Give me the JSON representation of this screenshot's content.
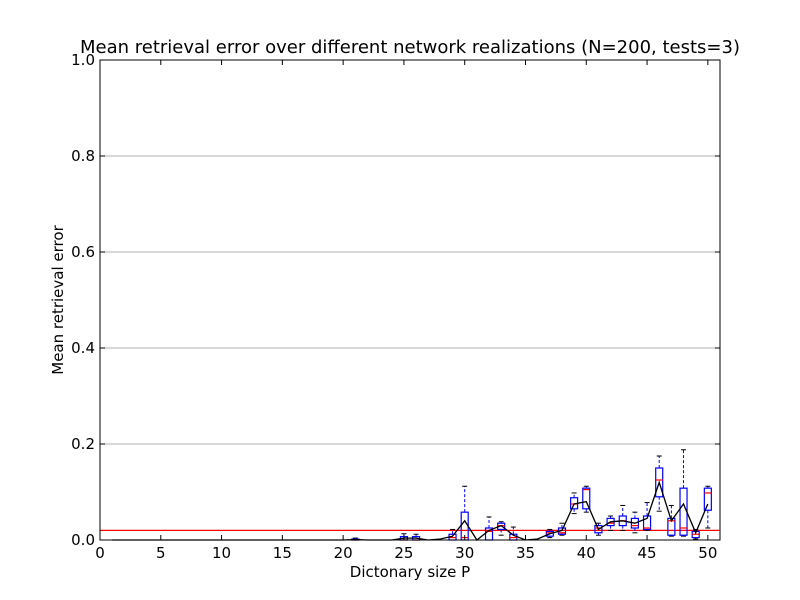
{
  "chart_data": {
    "type": "box",
    "title": "Mean retrieval error over different network realizations (N=200, tests=3)",
    "xlabel": "Dictonary size P",
    "ylabel": "Mean retrieval error",
    "xlim": [
      0,
      51
    ],
    "ylim": [
      0,
      1.0
    ],
    "xticks": [
      "0",
      "5",
      "10",
      "15",
      "20",
      "25",
      "30",
      "35",
      "40",
      "45",
      "50"
    ],
    "yticks": [
      "0.0",
      "0.2",
      "0.4",
      "0.6",
      "0.8",
      "1.0"
    ],
    "grid": "horizontal",
    "reference_line": {
      "y": 0.02,
      "color": "#ff0000"
    },
    "colors": {
      "box": "#0000ff",
      "median": "#ff0000",
      "mean_line": "#000000",
      "grid": "#b0b0b0"
    },
    "boxes": [
      {
        "x": 21,
        "q1": 0,
        "med": 0,
        "q3": 0.002,
        "lo": 0,
        "hi": 0.004,
        "mean": 0.001
      },
      {
        "x": 25,
        "q1": 0,
        "med": 0,
        "q3": 0.007,
        "lo": 0,
        "hi": 0.013,
        "mean": 0.004
      },
      {
        "x": 26,
        "q1": 0,
        "med": 0,
        "q3": 0.007,
        "lo": 0,
        "hi": 0.012,
        "mean": 0.004
      },
      {
        "x": 29,
        "q1": 0,
        "med": 0.005,
        "q3": 0.012,
        "lo": 0,
        "hi": 0.022,
        "mean": 0.008
      },
      {
        "x": 30,
        "q1": 0,
        "med": 0.005,
        "q3": 0.058,
        "lo": 0,
        "hi": 0.112,
        "mean": 0.04
      },
      {
        "x": 32,
        "q1": 0,
        "med": 0.018,
        "q3": 0.025,
        "lo": 0,
        "hi": 0.048,
        "mean": 0.02
      },
      {
        "x": 33,
        "q1": 0.022,
        "med": 0.03,
        "q3": 0.035,
        "lo": 0.01,
        "hi": 0.038,
        "mean": 0.03
      },
      {
        "x": 34,
        "q1": 0,
        "med": 0.005,
        "q3": 0.012,
        "lo": 0,
        "hi": 0.027,
        "mean": 0.01
      },
      {
        "x": 37,
        "q1": 0.008,
        "med": 0.015,
        "q3": 0.018,
        "lo": 0.005,
        "hi": 0.022,
        "mean": 0.013
      },
      {
        "x": 38,
        "q1": 0.012,
        "med": 0.015,
        "q3": 0.025,
        "lo": 0.01,
        "hi": 0.035,
        "mean": 0.02
      },
      {
        "x": 39,
        "q1": 0.065,
        "med": 0.075,
        "q3": 0.088,
        "lo": 0.055,
        "hi": 0.098,
        "mean": 0.075
      },
      {
        "x": 40,
        "q1": 0.065,
        "med": 0.105,
        "q3": 0.108,
        "lo": 0.058,
        "hi": 0.112,
        "mean": 0.08
      },
      {
        "x": 41,
        "q1": 0.015,
        "med": 0.025,
        "q3": 0.03,
        "lo": 0.01,
        "hi": 0.035,
        "mean": 0.022
      },
      {
        "x": 42,
        "q1": 0.03,
        "med": 0.035,
        "q3": 0.045,
        "lo": 0.02,
        "hi": 0.05,
        "mean": 0.038
      },
      {
        "x": 43,
        "q1": 0.03,
        "med": 0.04,
        "q3": 0.05,
        "lo": 0.02,
        "hi": 0.072,
        "mean": 0.04
      },
      {
        "x": 44,
        "q1": 0.025,
        "med": 0.03,
        "q3": 0.045,
        "lo": 0.015,
        "hi": 0.058,
        "mean": 0.035
      },
      {
        "x": 45,
        "q1": 0.022,
        "med": 0.025,
        "q3": 0.05,
        "lo": 0.02,
        "hi": 0.078,
        "mean": 0.045
      },
      {
        "x": 46,
        "q1": 0.09,
        "med": 0.125,
        "q3": 0.15,
        "lo": 0.06,
        "hi": 0.175,
        "mean": 0.12
      },
      {
        "x": 47,
        "q1": 0.01,
        "med": 0.04,
        "q3": 0.045,
        "lo": 0.008,
        "hi": 0.072,
        "mean": 0.04
      },
      {
        "x": 48,
        "q1": 0.01,
        "med": 0.025,
        "q3": 0.108,
        "lo": 0.008,
        "hi": 0.188,
        "mean": 0.075
      },
      {
        "x": 49,
        "q1": 0.005,
        "med": 0.012,
        "q3": 0.018,
        "lo": 0.002,
        "hi": 0.022,
        "mean": 0.015
      },
      {
        "x": 50,
        "q1": 0.062,
        "med": 0.098,
        "q3": 0.108,
        "lo": 0.025,
        "hi": 0.112,
        "mean": 0.075
      }
    ],
    "mean_line": [
      [
        1,
        0
      ],
      [
        20,
        0
      ],
      [
        21,
        0.001
      ],
      [
        22,
        0
      ],
      [
        24,
        0
      ],
      [
        25,
        0.004
      ],
      [
        26,
        0.004
      ],
      [
        27,
        0
      ],
      [
        28,
        0.002
      ],
      [
        29,
        0.008
      ],
      [
        30,
        0.04
      ],
      [
        31,
        0
      ],
      [
        32,
        0.02
      ],
      [
        33,
        0.03
      ],
      [
        34,
        0.01
      ],
      [
        35,
        0
      ],
      [
        36,
        0.002
      ],
      [
        37,
        0.013
      ],
      [
        38,
        0.02
      ],
      [
        39,
        0.075
      ],
      [
        40,
        0.08
      ],
      [
        41,
        0.022
      ],
      [
        42,
        0.038
      ],
      [
        43,
        0.04
      ],
      [
        44,
        0.035
      ],
      [
        45,
        0.045
      ],
      [
        46,
        0.12
      ],
      [
        47,
        0.04
      ],
      [
        48,
        0.075
      ],
      [
        49,
        0.015
      ],
      [
        50,
        0.075
      ]
    ]
  }
}
